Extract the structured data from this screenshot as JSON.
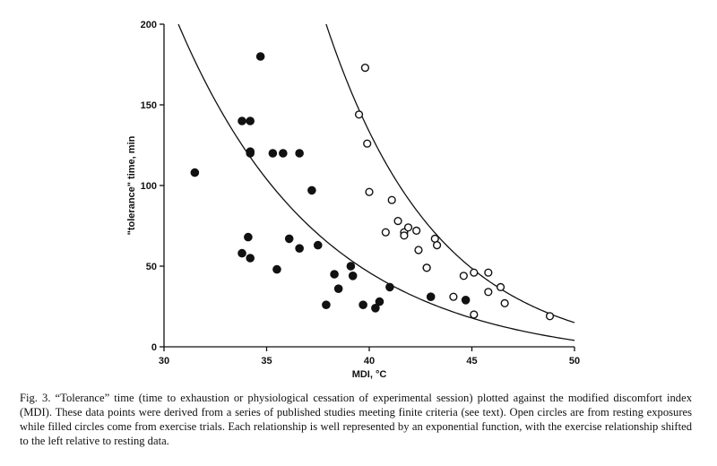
{
  "chart_data": {
    "type": "scatter",
    "title": "",
    "xlabel": "MDI, °C",
    "ylabel": "\"tolerance\" time, min",
    "xlim": [
      30,
      50
    ],
    "ylim": [
      0,
      200
    ],
    "xticks": [
      30,
      35,
      40,
      45,
      50
    ],
    "yticks": [
      0,
      50,
      100,
      150,
      200
    ],
    "grid": false,
    "series": [
      {
        "marker": "filled-circle",
        "points": [
          [
            31.5,
            108
          ],
          [
            33.8,
            140
          ],
          [
            34.2,
            140
          ],
          [
            34.2,
            121
          ],
          [
            34.2,
            120
          ],
          [
            34.7,
            180
          ],
          [
            35.3,
            120
          ],
          [
            35.8,
            120
          ],
          [
            36.6,
            120
          ],
          [
            37.2,
            97
          ],
          [
            34.1,
            68
          ],
          [
            33.8,
            58
          ],
          [
            34.2,
            55
          ],
          [
            35.5,
            48
          ],
          [
            36.1,
            67
          ],
          [
            36.6,
            61
          ],
          [
            37.5,
            63
          ],
          [
            38.3,
            45
          ],
          [
            37.9,
            26
          ],
          [
            38.5,
            36
          ],
          [
            39.1,
            50
          ],
          [
            39.2,
            44
          ],
          [
            39.7,
            26
          ],
          [
            40.3,
            24
          ],
          [
            40.5,
            28
          ],
          [
            41.0,
            37
          ],
          [
            43.0,
            31
          ],
          [
            44.7,
            29
          ]
        ]
      },
      {
        "marker": "open-circle",
        "points": [
          [
            39.8,
            173
          ],
          [
            39.5,
            144
          ],
          [
            39.9,
            126
          ],
          [
            40.0,
            96
          ],
          [
            41.1,
            91
          ],
          [
            40.8,
            71
          ],
          [
            41.4,
            78
          ],
          [
            41.7,
            71
          ],
          [
            41.7,
            69
          ],
          [
            41.9,
            74
          ],
          [
            42.3,
            72
          ],
          [
            42.4,
            60
          ],
          [
            42.8,
            49
          ],
          [
            42.8,
            49
          ],
          [
            43.2,
            67
          ],
          [
            43.3,
            63
          ],
          [
            44.1,
            31
          ],
          [
            44.6,
            44
          ],
          [
            45.1,
            46
          ],
          [
            45.8,
            46
          ],
          [
            45.8,
            34
          ],
          [
            46.4,
            37
          ],
          [
            45.1,
            20
          ],
          [
            46.6,
            27
          ],
          [
            48.8,
            19
          ]
        ]
      }
    ],
    "fit_curves": [
      {
        "type": "exponential",
        "anchors": [
          [
            30.7,
            200
          ],
          [
            44.0,
            22
          ],
          [
            50.0,
            4
          ]
        ]
      },
      {
        "type": "exponential",
        "anchors": [
          [
            37.9,
            200
          ],
          [
            47.5,
            28
          ],
          [
            50.0,
            15
          ]
        ]
      }
    ]
  },
  "caption": "Fig. 3. “Tolerance” time (time to exhaustion or physiological cessation of experimental session) plotted against the modified discomfort index (MDI). These data points were derived from a series of published studies meeting finite criteria (see text). Open circles are from resting exposures while filled circles come from exercise trials. Each relationship is well represented by an exponential function, with the exercise relationship shifted to the left relative to resting data."
}
